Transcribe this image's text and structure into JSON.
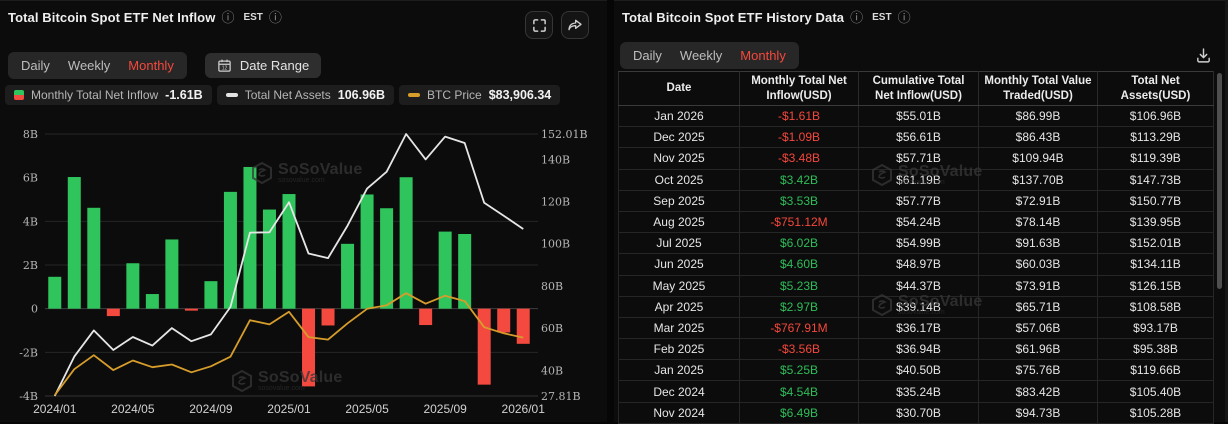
{
  "watermark": {
    "name": "SoSoValue",
    "domain": "sosovalue.com"
  },
  "left_panel": {
    "title": "Total Bitcoin Spot ETF Net Inflow",
    "timezone": "EST",
    "tabs": [
      {
        "label": "Daily",
        "active": false
      },
      {
        "label": "Weekly",
        "active": false
      },
      {
        "label": "Monthly",
        "active": true
      }
    ],
    "date_range_label": "Date Range",
    "legend": [
      {
        "key": "inflow",
        "icon": "inflow-swatch-icon",
        "label": "Monthly Total Net Inflow",
        "value": "-1.61B"
      },
      {
        "key": "assets",
        "icon": "net-assets-line-icon",
        "label": "Total Net Assets",
        "value": "106.96B"
      },
      {
        "key": "btc",
        "icon": "btc-price-line-icon",
        "label": "BTC Price",
        "value": "$83,906.34"
      }
    ]
  },
  "chart_data": {
    "type": "bar",
    "title": "Total Bitcoin Spot ETF Net Inflow (Monthly)",
    "x": [
      "2024/01",
      "2024/02",
      "2024/03",
      "2024/04",
      "2024/05",
      "2024/06",
      "2024/07",
      "2024/08",
      "2024/09",
      "2024/10",
      "2024/11",
      "2024/12",
      "2025/01",
      "2025/02",
      "2025/03",
      "2025/04",
      "2025/05",
      "2025/06",
      "2025/07",
      "2025/08",
      "2025/09",
      "2025/10",
      "2025/11",
      "2025/12",
      "2026/01"
    ],
    "series": [
      {
        "name": "Monthly Total Net Inflow (USD B)",
        "type": "bar",
        "axis": "left",
        "values": [
          1.46,
          6.03,
          4.62,
          -0.34,
          2.08,
          0.67,
          3.17,
          -0.09,
          1.26,
          5.35,
          6.49,
          4.54,
          5.25,
          -3.56,
          -0.77,
          2.97,
          5.23,
          4.6,
          6.02,
          -0.75,
          3.53,
          3.42,
          -3.48,
          -1.09,
          -1.61
        ]
      },
      {
        "name": "Total Net Assets (USD B)",
        "type": "line",
        "axis": "right",
        "values": [
          27.81,
          46.5,
          58.9,
          49.6,
          55.8,
          51.7,
          60.0,
          53.8,
          57.0,
          70.0,
          105.28,
          105.4,
          119.66,
          95.38,
          93.17,
          108.58,
          126.15,
          134.11,
          152.01,
          139.95,
          150.77,
          147.73,
          119.39,
          113.29,
          106.96
        ]
      },
      {
        "name": "BTC Price (USD)",
        "type": "line",
        "axis": "hidden",
        "values": [
          42580,
          61200,
          71300,
          60600,
          67500,
          62700,
          64600,
          59000,
          63300,
          70200,
          96400,
          93400,
          102400,
          84300,
          82500,
          94200,
          104600,
          107100,
          115800,
          108200,
          114000,
          110100,
          91400,
          87000,
          83906
        ]
      }
    ],
    "left_axis": {
      "range": [
        -4,
        8
      ],
      "ticks": [
        {
          "label": "8B",
          "v": 8
        },
        {
          "label": "6B",
          "v": 6
        },
        {
          "label": "4B",
          "v": 4
        },
        {
          "label": "2B",
          "v": 2
        },
        {
          "label": "0",
          "v": 0
        },
        {
          "label": "-2B",
          "v": -2
        },
        {
          "label": "-4B",
          "v": -4
        }
      ],
      "grid_values": [
        8,
        4,
        2,
        -2
      ]
    },
    "right_axis": {
      "range": [
        27.81,
        152.01
      ],
      "ticks": [
        {
          "label": "152.01B",
          "v": 152.01
        },
        {
          "label": "140B",
          "v": 140
        },
        {
          "label": "120B",
          "v": 120
        },
        {
          "label": "100B",
          "v": 100
        },
        {
          "label": "80B",
          "v": 80
        },
        {
          "label": "60B",
          "v": 60
        },
        {
          "label": "40B",
          "v": 40
        },
        {
          "label": "27.81B",
          "v": 27.81
        }
      ]
    },
    "x_ticks": [
      {
        "label": "2024/01",
        "i": 0
      },
      {
        "label": "2024/05",
        "i": 4
      },
      {
        "label": "2024/09",
        "i": 8
      },
      {
        "label": "2025/01",
        "i": 12
      },
      {
        "label": "2025/05",
        "i": 16
      },
      {
        "label": "2025/09",
        "i": 20
      },
      {
        "label": "2026/01",
        "i": 24
      }
    ],
    "colors": {
      "positive": "#2fc45c",
      "negative": "#f4493f",
      "net_assets": "#e6e6e6",
      "btc": "#d79d2b",
      "grid": "#262626",
      "zero_line": "#3f3f3f",
      "base_line": "#343434"
    },
    "btc_hidden_axis_range_k": [
      42,
      230
    ]
  },
  "right_panel": {
    "title": "Total Bitcoin Spot ETF History Data",
    "timezone": "EST",
    "tabs": [
      {
        "label": "Daily",
        "active": false
      },
      {
        "label": "Weekly",
        "active": false
      },
      {
        "label": "Monthly",
        "active": true
      }
    ],
    "table": {
      "columns": [
        "Date",
        "Monthly Total Net Inflow(USD)",
        "Cumulative Total Net Inflow(USD)",
        "Monthly Total Value Traded(USD)",
        "Total Net Assets(USD)"
      ],
      "rows": [
        {
          "date": "Jan 2026",
          "inflow": "-$1.61B",
          "sign": "neg",
          "cumulative": "$55.01B",
          "traded": "$86.99B",
          "assets": "$106.96B"
        },
        {
          "date": "Dec 2025",
          "inflow": "-$1.09B",
          "sign": "neg",
          "cumulative": "$56.61B",
          "traded": "$86.43B",
          "assets": "$113.29B"
        },
        {
          "date": "Nov 2025",
          "inflow": "-$3.48B",
          "sign": "neg",
          "cumulative": "$57.71B",
          "traded": "$109.94B",
          "assets": "$119.39B"
        },
        {
          "date": "Oct 2025",
          "inflow": "$3.42B",
          "sign": "pos",
          "cumulative": "$61.19B",
          "traded": "$137.70B",
          "assets": "$147.73B"
        },
        {
          "date": "Sep 2025",
          "inflow": "$3.53B",
          "sign": "pos",
          "cumulative": "$57.77B",
          "traded": "$72.91B",
          "assets": "$150.77B"
        },
        {
          "date": "Aug 2025",
          "inflow": "-$751.12M",
          "sign": "neg",
          "cumulative": "$54.24B",
          "traded": "$78.14B",
          "assets": "$139.95B"
        },
        {
          "date": "Jul 2025",
          "inflow": "$6.02B",
          "sign": "pos",
          "cumulative": "$54.99B",
          "traded": "$91.63B",
          "assets": "$152.01B"
        },
        {
          "date": "Jun 2025",
          "inflow": "$4.60B",
          "sign": "pos",
          "cumulative": "$48.97B",
          "traded": "$60.03B",
          "assets": "$134.11B"
        },
        {
          "date": "May 2025",
          "inflow": "$5.23B",
          "sign": "pos",
          "cumulative": "$44.37B",
          "traded": "$73.91B",
          "assets": "$126.15B"
        },
        {
          "date": "Apr 2025",
          "inflow": "$2.97B",
          "sign": "pos",
          "cumulative": "$39.14B",
          "traded": "$65.71B",
          "assets": "$108.58B"
        },
        {
          "date": "Mar 2025",
          "inflow": "-$767.91M",
          "sign": "neg",
          "cumulative": "$36.17B",
          "traded": "$57.06B",
          "assets": "$93.17B"
        },
        {
          "date": "Feb 2025",
          "inflow": "-$3.56B",
          "sign": "neg",
          "cumulative": "$36.94B",
          "traded": "$61.96B",
          "assets": "$95.38B"
        },
        {
          "date": "Jan 2025",
          "inflow": "$5.25B",
          "sign": "pos",
          "cumulative": "$40.50B",
          "traded": "$75.76B",
          "assets": "$119.66B"
        },
        {
          "date": "Dec 2024",
          "inflow": "$4.54B",
          "sign": "pos",
          "cumulative": "$35.24B",
          "traded": "$83.42B",
          "assets": "$105.40B"
        },
        {
          "date": "Nov 2024",
          "inflow": "$6.49B",
          "sign": "pos",
          "cumulative": "$30.70B",
          "traded": "$94.73B",
          "assets": "$105.28B"
        }
      ]
    }
  }
}
